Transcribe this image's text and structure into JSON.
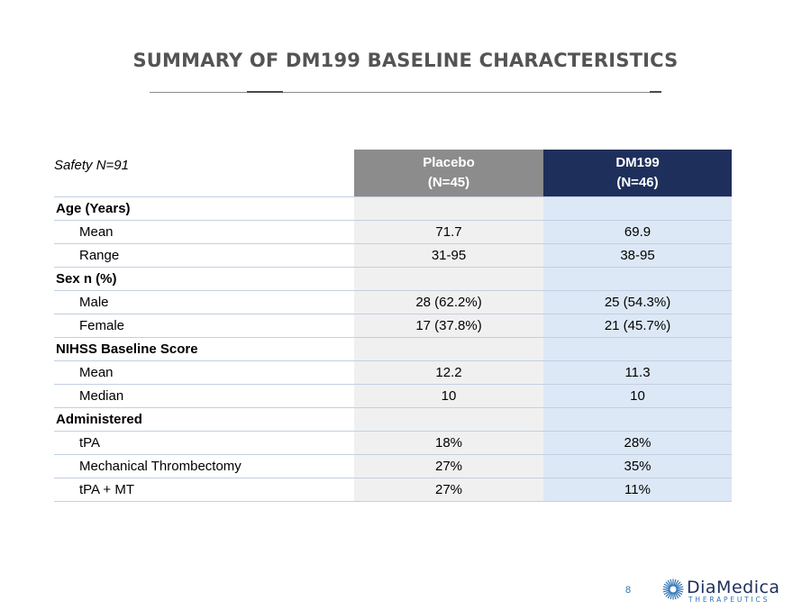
{
  "slide": {
    "title": "SUMMARY OF DM199 BASELINE CHARACTERISTICS",
    "page_number": "8"
  },
  "table": {
    "corner_label": "Safety  N=91",
    "columns": [
      {
        "name": "Placebo",
        "n": "(N=45)"
      },
      {
        "name": "DM199",
        "n": "(N=46)"
      }
    ],
    "rows": [
      {
        "label": "Age (Years)",
        "type": "section",
        "placebo": "",
        "dm199": ""
      },
      {
        "label": "Mean",
        "type": "item",
        "placebo": "71.7",
        "dm199": "69.9"
      },
      {
        "label": "Range",
        "type": "item",
        "placebo": "31-95",
        "dm199": "38-95"
      },
      {
        "label": "Sex n (%)",
        "type": "section",
        "placebo": "",
        "dm199": ""
      },
      {
        "label": "Male",
        "type": "item",
        "placebo": "28 (62.2%)",
        "dm199": "25 (54.3%)"
      },
      {
        "label": "Female",
        "type": "item",
        "placebo": "17 (37.8%)",
        "dm199": "21 (45.7%)"
      },
      {
        "label": "NIHSS Baseline Score",
        "type": "section",
        "placebo": "",
        "dm199": ""
      },
      {
        "label": "Mean",
        "type": "item",
        "placebo": "12.2",
        "dm199": "11.3"
      },
      {
        "label": "Median",
        "type": "item",
        "placebo": "10",
        "dm199": "10"
      },
      {
        "label": "Administered",
        "type": "section",
        "placebo": "",
        "dm199": ""
      },
      {
        "label": "tPA",
        "type": "item",
        "placebo": "18%",
        "dm199": "28%"
      },
      {
        "label": "Mechanical Thrombectomy",
        "type": "item",
        "placebo": "27%",
        "dm199": "35%"
      },
      {
        "label": "tPA + MT",
        "type": "item",
        "placebo": "27%",
        "dm199": "11%"
      }
    ]
  },
  "logo": {
    "name": "DiaMedica",
    "subtitle": "THERAPEUTICS",
    "icon": "sunburst-logo-icon"
  },
  "colors": {
    "placebo_header": "#8c8c8c",
    "dm199_header": "#1f2f5b",
    "placebo_cell": "#f0f0f0",
    "dm199_cell": "#dce8f5",
    "title": "#545454",
    "accent": "#2e74b5"
  }
}
